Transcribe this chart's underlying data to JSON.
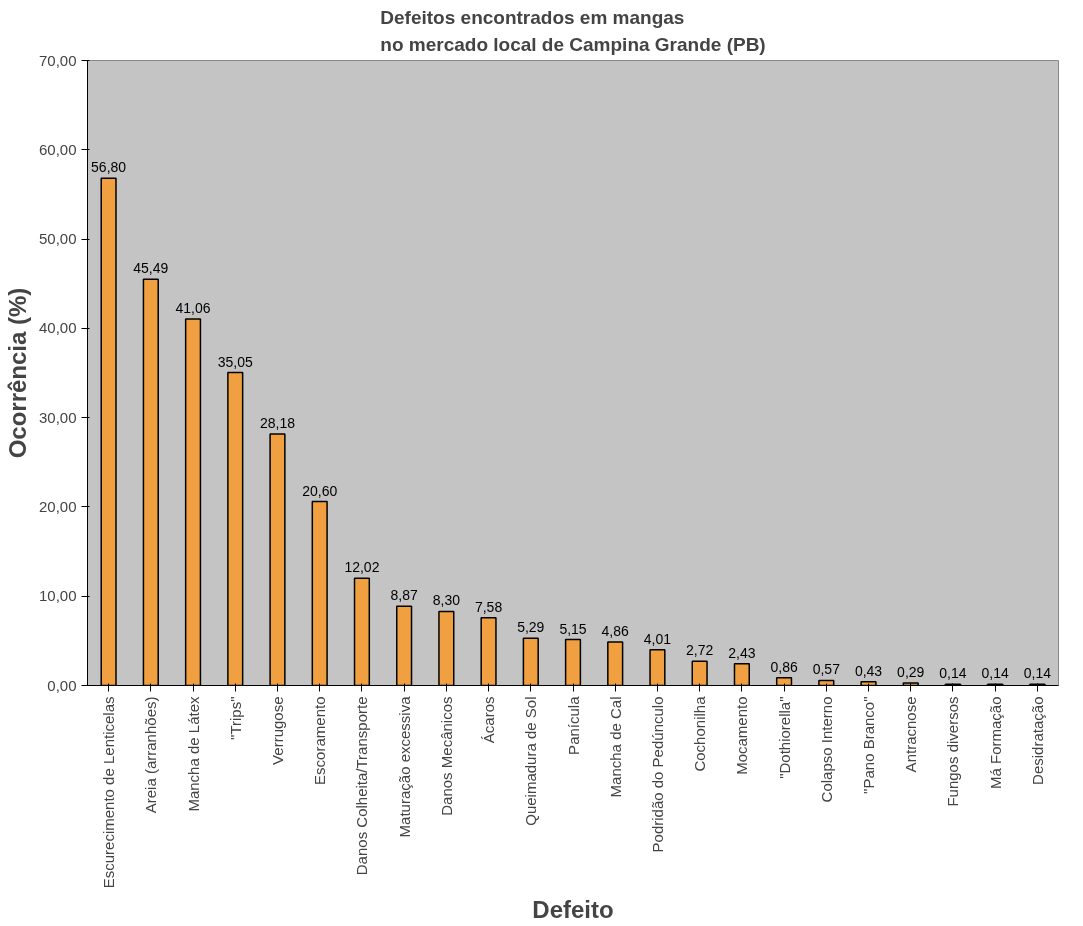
{
  "chart_data": {
    "type": "bar",
    "title": "Defeitos encontrados em mangas\nno mercado local de Campina Grande (PB)",
    "xlabel": "Defeito",
    "ylabel": "Ocorrência (%)",
    "categories": [
      "Escurecimento de Lenticelas",
      "Areia (arranhões)",
      "Mancha de Látex",
      "\"Trips\"",
      "Verrugose",
      "Escoramento",
      "Danos Colheita/Transporte",
      "Maturação excessiva",
      "Danos Mecânicos",
      "Ácaros",
      "Queimadura de Sol",
      "Panícula",
      "Mancha de Cal",
      "Podridão do Pedúnculo",
      "Cochonilha",
      "Mocamento",
      "\"Dothiorella\"",
      "Colapso Interno",
      "\"Pano Branco\"",
      "Antracnose",
      "Fungos diversos",
      "Má Formação",
      "Desidratação"
    ],
    "values": [
      56.8,
      45.49,
      41.06,
      35.05,
      28.18,
      20.6,
      12.02,
      8.87,
      8.3,
      7.58,
      5.29,
      5.15,
      4.86,
      4.01,
      2.72,
      2.43,
      0.86,
      0.57,
      0.43,
      0.29,
      0.14,
      0.14,
      0.14
    ],
    "value_labels": [
      "56,80",
      "45,49",
      "41,06",
      "35,05",
      "28,18",
      "20,60",
      "12,02",
      "8,87",
      "8,30",
      "7,58",
      "5,29",
      "5,15",
      "4,86",
      "4,01",
      "2,72",
      "2,43",
      "0,86",
      "0,57",
      "0,43",
      "0,29",
      "0,14",
      "0,14",
      "0,14"
    ],
    "color": "#f0a040",
    "ylim": [
      0,
      70
    ],
    "yticks": [
      {
        "value": 0,
        "label": "0,00"
      },
      {
        "value": 10,
        "label": "10,00"
      },
      {
        "value": 20,
        "label": "20,00"
      },
      {
        "value": 30,
        "label": "30,00"
      },
      {
        "value": 40,
        "label": "40,00"
      },
      {
        "value": 50,
        "label": "50,00"
      },
      {
        "value": 60,
        "label": "60,00"
      },
      {
        "value": 70,
        "label": "70,00"
      }
    ],
    "grid": false
  }
}
